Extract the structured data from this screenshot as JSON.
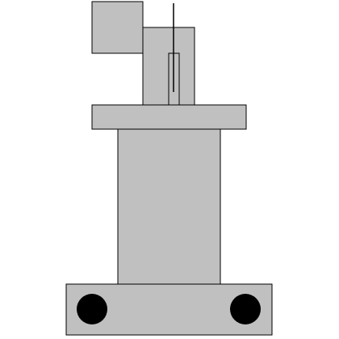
{
  "colors": {
    "background": "#ffffff",
    "body_fill": "#c0c0c0",
    "outline": "#000000",
    "wheel_fill": "#000000"
  }
}
